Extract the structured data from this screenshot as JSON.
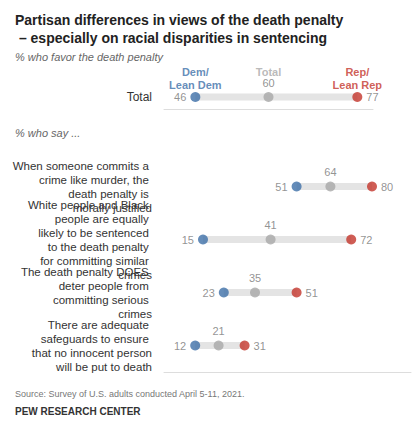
{
  "chart_data": [
    {
      "type": "dot",
      "title": "Partisan differences in views of the death penalty – especially on racial disparities in sentencing",
      "subtitle": "% who favor the death penalty",
      "orientation": "horizontal",
      "data_labels": true,
      "tick_labels": "y",
      "categories": [
        "Total"
      ],
      "xlim": [
        40,
        80
      ],
      "series": [
        {
          "name": "Dem/ Lean Dem",
          "color": "#3d6fa8",
          "values": [
            46
          ]
        },
        {
          "name": "Total",
          "color": "#a8a8a8",
          "values": [
            60
          ]
        },
        {
          "name": "Rep/ Lean Rep",
          "color": "#c3352b",
          "values": [
            77
          ]
        }
      ]
    },
    {
      "type": "dot",
      "subtitle": "% who say ...",
      "orientation": "horizontal",
      "data_labels": true,
      "tick_labels": "y",
      "categories": [
        "When someone commits a crime like murder, the death penalty is morally justified",
        "White people and Black people are equally likely to be sentenced to the death penalty for committing similar crimes",
        "The death penalty DOES deter people from committing serious crimes",
        "There are adequate safeguards to ensure that no innocent person will be put to death"
      ],
      "xlim": [
        0,
        95
      ],
      "series": [
        {
          "color": "#3d6fa8",
          "values": [
            51,
            15,
            23,
            12
          ]
        },
        {
          "color": "#a8a8a8",
          "values": [
            64,
            41,
            35,
            21
          ]
        },
        {
          "color": "#c3352b",
          "values": [
            80,
            72,
            51,
            31
          ]
        }
      ],
      "source": "Source: Survey of U.S. adults conducted April 5-11, 2021.",
      "credit": "PEW RESEARCH CENTER"
    }
  ]
}
